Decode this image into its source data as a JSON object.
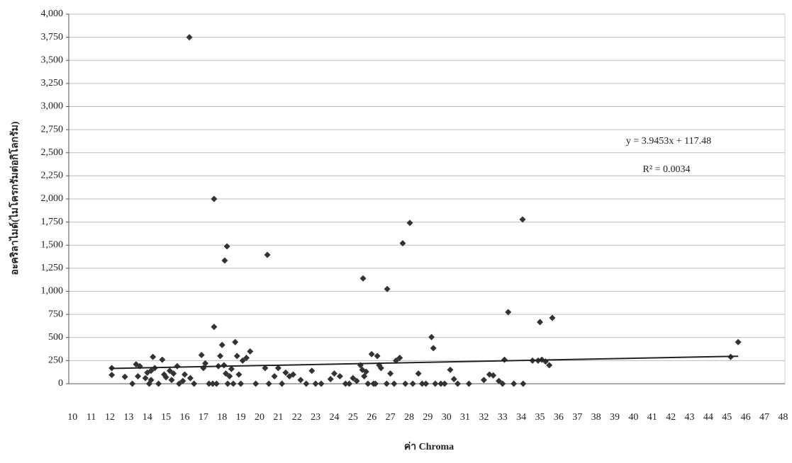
{
  "chart_data": {
    "type": "scatter",
    "y_label": "อะคริลาไมด์(ไมโครกรัมต่อกิโลกรัม)",
    "x_label": "ค่า Chroma",
    "annotations": [
      "y = 3.9453x + 117.48",
      "R² = 0.0034"
    ],
    "color": "#333333",
    "grid": true,
    "xlim": [
      9.8,
      48.1
    ],
    "xticks": [
      10,
      11,
      12,
      13,
      14,
      15,
      16,
      17,
      18,
      19,
      20,
      21,
      22,
      23,
      24,
      25,
      26,
      27,
      28,
      29,
      30,
      31,
      32,
      33,
      34,
      35,
      36,
      37,
      38,
      39,
      40,
      41,
      42,
      43,
      44,
      45,
      46,
      47,
      48
    ],
    "ylim": [
      0,
      4000
    ],
    "yticks": [
      0,
      {
        "value": 250,
        "label": "250"
      },
      {
        "value": 500,
        "label": "500"
      },
      {
        "value": 750,
        "label": "750"
      },
      {
        "value": 1000,
        "label": "1,000"
      },
      {
        "value": 1250,
        "label": "1,250"
      },
      {
        "value": 1500,
        "label": "1,500"
      },
      {
        "value": 1750,
        "label": "1,750"
      },
      {
        "value": 2000,
        "label": "2,000"
      },
      {
        "value": 2250,
        "label": "2,250"
      },
      {
        "value": 2500,
        "label": "2,500"
      },
      {
        "value": 2750,
        "label": "2,750"
      },
      {
        "value": 3000,
        "label": "3,000"
      },
      {
        "value": 3250,
        "label": "3,250"
      },
      {
        "value": 3500,
        "label": "3,500"
      },
      {
        "value": 3750,
        "label": "3,750"
      },
      {
        "value": 4000,
        "label": "4,000"
      }
    ],
    "trendline": {
      "slope": 3.9453,
      "intercept": 117.48,
      "x_range": [
        12,
        45.6
      ]
    },
    "x": [
      16.25,
      17.57,
      18.26,
      18.14,
      20.42,
      25.54,
      26.83,
      27.66,
      28.04,
      34.07,
      29.2,
      29.3,
      33.3,
      35.0,
      35.66,
      17.57,
      45.6,
      45.2,
      12.1,
      12.1,
      12.8,
      13.2,
      13.4,
      13.6,
      13.5,
      13.9,
      14.0,
      14.1,
      14.2,
      14.3,
      14.4,
      14.2,
      14.6,
      14.8,
      14.9,
      15.0,
      15.2,
      15.3,
      15.4,
      15.6,
      15.7,
      15.9,
      16.0,
      16.3,
      16.5,
      16.9,
      17.0,
      17.1,
      17.3,
      17.5,
      17.7,
      17.8,
      17.9,
      18.0,
      18.1,
      18.2,
      18.3,
      18.4,
      18.5,
      18.6,
      18.7,
      18.8,
      18.9,
      19.0,
      19.1,
      19.3,
      19.5,
      19.8,
      20.3,
      20.5,
      20.8,
      21.0,
      21.2,
      21.4,
      21.6,
      21.8,
      22.2,
      22.5,
      22.8,
      23.0,
      23.3,
      23.8,
      24.0,
      24.3,
      24.6,
      24.8,
      25.0,
      25.2,
      25.4,
      25.5,
      25.6,
      25.7,
      25.8,
      26.0,
      26.1,
      26.2,
      26.3,
      26.4,
      26.5,
      26.8,
      27.0,
      27.2,
      27.3,
      27.5,
      27.8,
      28.2,
      28.5,
      28.7,
      28.9,
      29.4,
      29.7,
      29.9,
      30.2,
      30.4,
      30.6,
      31.2,
      32.0,
      32.3,
      32.5,
      32.8,
      33.0,
      33.1,
      33.6,
      34.1,
      34.6,
      34.9,
      35.1,
      35.3,
      35.5
    ],
    "values": [
      3750,
      2000,
      1487,
      1333,
      1395,
      1140,
      1025,
      1520,
      1740,
      1778,
      505,
      385,
      775,
      667,
      713,
      615,
      450,
      290,
      170,
      95,
      75,
      0,
      210,
      190,
      80,
      60,
      120,
      0,
      140,
      290,
      170,
      40,
      0,
      260,
      100,
      70,
      140,
      40,
      110,
      190,
      0,
      30,
      100,
      60,
      0,
      310,
      170,
      220,
      0,
      0,
      0,
      190,
      300,
      420,
      200,
      110,
      0,
      80,
      160,
      0,
      450,
      300,
      100,
      0,
      250,
      280,
      350,
      0,
      170,
      0,
      80,
      170,
      0,
      120,
      80,
      100,
      40,
      0,
      140,
      0,
      0,
      50,
      110,
      80,
      0,
      0,
      60,
      30,
      200,
      150,
      80,
      130,
      0,
      320,
      0,
      0,
      300,
      200,
      170,
      0,
      110,
      0,
      250,
      280,
      0,
      0,
      110,
      0,
      0,
      0,
      0,
      0,
      150,
      50,
      0,
      0,
      40,
      100,
      90,
      30,
      0,
      260,
      0,
      0,
      250,
      250,
      260,
      240,
      200
    ]
  }
}
